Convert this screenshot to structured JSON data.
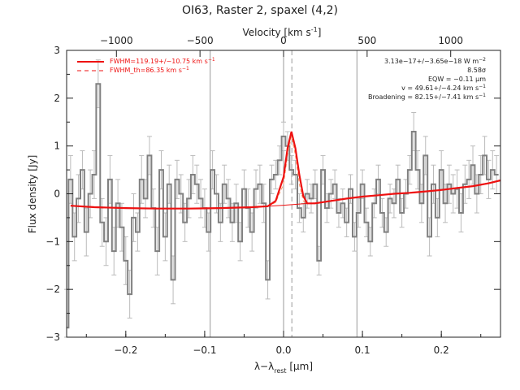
{
  "chart_data": {
    "type": "line",
    "title": "OI63, Raster 2, spaxel (4,2)",
    "xlabel": "λ−λ_rest [μm]",
    "xlabel_parts": {
      "main": "λ−λ",
      "sub": "rest",
      "unit": " [μm]"
    },
    "ylabel": "Flux density [Jy]",
    "top_axis_label": "Velocity [km s⁻¹]",
    "top_axis_label_parts": {
      "main": "Velocity [km s",
      "sup": "-1",
      "end": "]"
    },
    "xlim": [
      -0.275,
      0.275
    ],
    "ylim": [
      -3.0,
      3.0
    ],
    "xticks": [
      -0.2,
      -0.1,
      0.0,
      0.1,
      0.2
    ],
    "xtick_labels": [
      "−0.2",
      "−0.1",
      "0.0",
      "0.1",
      "0.2"
    ],
    "yticks": [
      -3,
      -2,
      -1,
      0,
      1,
      2,
      3
    ],
    "ytick_labels": [
      "−3",
      "−2",
      "−1",
      "0",
      "1",
      "2",
      "3"
    ],
    "top_ticks_km_s": [
      -1000,
      -500,
      0,
      500,
      1000
    ],
    "top_tick_labels": [
      "−1000",
      "−500",
      "0",
      "500",
      "1000"
    ],
    "km_s_per_um": 4720,
    "vertical_lines": [
      -0.093,
      0.0,
      0.093
    ],
    "center_line": 0.0105,
    "legend": [
      {
        "label": "FWHM=119.19+/−10.75 km s⁻¹",
        "parts": {
          "main": "FWHM=119.19+/−10.75 km s",
          "sup": "−1"
        },
        "style": "solid",
        "color": "#ee1111"
      },
      {
        "label": "FWHM_th=86.35 km s⁻¹",
        "parts": {
          "main": "FWHM_th=86.35 km s",
          "sup": "−1"
        },
        "style": "dashed",
        "color": "#ee1111"
      }
    ],
    "legend_position": "top-left",
    "annotations": [
      {
        "parts": {
          "main": "3.13e−17+/−3.65e−18 W m",
          "sup": "−2"
        }
      },
      {
        "parts": {
          "main": "8.58σ"
        }
      },
      {
        "parts": {
          "main": "EQW = −0.11 μm"
        }
      },
      {
        "parts": {
          "main": "v = 49.61+/−4.24 km s",
          "sup": "−1"
        }
      },
      {
        "parts": {
          "main": "Broadening = 82.15+/−7.41 km s",
          "sup": "−1"
        }
      }
    ],
    "annotation_position": "top-right",
    "data_color": "#808080",
    "fit_color": "#ee1111",
    "series": [
      {
        "name": "data",
        "style": "step",
        "x": [
          -0.275,
          -0.27,
          -0.265,
          -0.26,
          -0.255,
          -0.25,
          -0.245,
          -0.24,
          -0.235,
          -0.23,
          -0.225,
          -0.22,
          -0.215,
          -0.21,
          -0.205,
          -0.2,
          -0.195,
          -0.19,
          -0.185,
          -0.18,
          -0.175,
          -0.17,
          -0.165,
          -0.16,
          -0.155,
          -0.15,
          -0.145,
          -0.14,
          -0.135,
          -0.13,
          -0.125,
          -0.12,
          -0.115,
          -0.11,
          -0.105,
          -0.1,
          -0.095,
          -0.09,
          -0.085,
          -0.08,
          -0.075,
          -0.07,
          -0.065,
          -0.06,
          -0.055,
          -0.05,
          -0.045,
          -0.04,
          -0.035,
          -0.03,
          -0.025,
          -0.02,
          -0.015,
          -0.01,
          -0.005,
          0.0,
          0.005,
          0.01,
          0.015,
          0.02,
          0.025,
          0.03,
          0.035,
          0.04,
          0.045,
          0.05,
          0.055,
          0.06,
          0.065,
          0.07,
          0.075,
          0.08,
          0.085,
          0.09,
          0.095,
          0.1,
          0.105,
          0.11,
          0.115,
          0.12,
          0.125,
          0.13,
          0.135,
          0.14,
          0.145,
          0.15,
          0.155,
          0.16,
          0.165,
          0.17,
          0.175,
          0.18,
          0.185,
          0.19,
          0.195,
          0.2,
          0.205,
          0.21,
          0.215,
          0.22,
          0.225,
          0.23,
          0.235,
          0.24,
          0.245,
          0.25,
          0.255,
          0.26,
          0.265,
          0.27
        ],
        "y": [
          -2.8,
          0.3,
          -0.9,
          -0.1,
          0.5,
          -0.8,
          0.0,
          0.4,
          2.3,
          -0.6,
          -1.0,
          0.3,
          -1.2,
          -0.2,
          -0.7,
          -1.4,
          -2.1,
          -0.5,
          -0.8,
          0.3,
          -0.1,
          0.8,
          -0.3,
          -1.2,
          0.5,
          -0.9,
          0.2,
          -1.8,
          0.3,
          0.0,
          -0.6,
          -0.1,
          0.4,
          0.2,
          -0.1,
          -0.3,
          -0.8,
          0.5,
          0.0,
          -0.6,
          0.2,
          -0.1,
          -0.6,
          -0.2,
          -1.0,
          0.1,
          -0.3,
          -0.8,
          0.1,
          0.2,
          -0.2,
          -1.8,
          0.3,
          0.4,
          0.7,
          1.2,
          1.0,
          0.5,
          0.4,
          -0.3,
          -0.5,
          0.0,
          -0.1,
          0.2,
          -1.4,
          0.5,
          -0.3,
          0.0,
          0.2,
          -0.4,
          -0.2,
          -0.6,
          0.1,
          -0.9,
          -0.4,
          0.2,
          -0.6,
          -1.0,
          -0.2,
          0.3,
          -0.4,
          -0.8,
          -0.1,
          -0.2,
          0.3,
          -0.4,
          0.0,
          0.5,
          1.3,
          0.5,
          -0.2,
          0.8,
          -0.9,
          0.2,
          -0.5,
          0.5,
          -0.2,
          0.2,
          0.0,
          0.1,
          -0.4,
          0.2,
          0.3,
          0.6,
          0.0,
          0.4,
          0.8,
          0.3,
          0.5,
          0.4
        ],
        "err": [
          0.8,
          0.5,
          0.5,
          0.5,
          0.4,
          0.5,
          0.5,
          0.5,
          0.5,
          0.5,
          0.5,
          0.5,
          0.5,
          0.5,
          0.5,
          0.5,
          0.5,
          0.5,
          0.4,
          0.5,
          0.4,
          0.4,
          0.4,
          0.5,
          0.4,
          0.5,
          0.4,
          0.5,
          0.4,
          0.4,
          0.4,
          0.4,
          0.4,
          0.4,
          0.4,
          0.4,
          0.4,
          0.4,
          0.4,
          0.4,
          0.4,
          0.4,
          0.4,
          0.4,
          0.4,
          0.4,
          0.4,
          0.4,
          0.4,
          0.4,
          0.4,
          0.4,
          0.3,
          0.3,
          0.3,
          0.3,
          0.3,
          0.3,
          0.3,
          0.3,
          0.3,
          0.3,
          0.3,
          0.3,
          0.3,
          0.3,
          0.3,
          0.3,
          0.3,
          0.3,
          0.3,
          0.3,
          0.3,
          0.3,
          0.3,
          0.3,
          0.3,
          0.3,
          0.3,
          0.3,
          0.3,
          0.3,
          0.3,
          0.3,
          0.3,
          0.3,
          0.3,
          0.3,
          0.4,
          0.4,
          0.4,
          0.4,
          0.4,
          0.4,
          0.4,
          0.4,
          0.4,
          0.4,
          0.4,
          0.4,
          0.4,
          0.4,
          0.4,
          0.4,
          0.4,
          0.4,
          0.4,
          0.4,
          0.4,
          0.4
        ]
      },
      {
        "name": "fit",
        "style": "solid",
        "x": [
          -0.27,
          -0.24,
          -0.2,
          -0.16,
          -0.12,
          -0.08,
          -0.04,
          -0.02,
          -0.01,
          0.0,
          0.005,
          0.01,
          0.015,
          0.02,
          0.025,
          0.03,
          0.04,
          0.06,
          0.08,
          0.1,
          0.12,
          0.14,
          0.16,
          0.18,
          0.2,
          0.22,
          0.24,
          0.26,
          0.275
        ],
        "y": [
          -0.25,
          -0.28,
          -0.3,
          -0.31,
          -0.31,
          -0.3,
          -0.28,
          -0.26,
          -0.15,
          0.35,
          0.95,
          1.3,
          0.95,
          0.4,
          -0.05,
          -0.2,
          -0.2,
          -0.15,
          -0.1,
          -0.06,
          -0.03,
          0.0,
          0.02,
          0.05,
          0.08,
          0.12,
          0.16,
          0.22,
          0.28
        ]
      },
      {
        "name": "continuum",
        "style": "thin",
        "x": [
          -0.27,
          -0.2,
          -0.12,
          -0.04,
          0.0,
          0.04,
          0.08,
          0.12,
          0.16,
          0.2,
          0.24,
          0.275
        ],
        "y": [
          -0.25,
          -0.3,
          -0.31,
          -0.28,
          -0.24,
          -0.19,
          -0.1,
          -0.03,
          0.02,
          0.08,
          0.16,
          0.28
        ]
      },
      {
        "name": "thermal",
        "style": "dashed",
        "x": [
          -0.02,
          -0.01,
          0.0,
          0.005,
          0.01,
          0.015,
          0.02,
          0.025,
          0.03
        ],
        "y": [
          -0.26,
          -0.18,
          0.2,
          0.8,
          1.2,
          0.8,
          0.2,
          -0.15,
          -0.22
        ]
      }
    ]
  }
}
